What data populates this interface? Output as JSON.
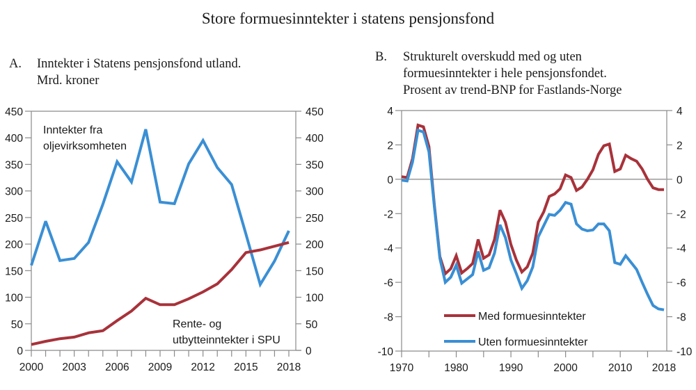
{
  "title": "Store formuesinntekter i statens pensjonsfond",
  "panels": {
    "a": {
      "letter": "A.",
      "title_lines": [
        "Inntekter i Statens pensjonsfond utland.",
        "Mrd. kroner"
      ]
    },
    "b": {
      "letter": "B.",
      "title_lines": [
        "Strukturelt overskudd med og uten",
        "formuesinntekter i hele pensjonsfondet.",
        "Prosent av trend-BNP for Fastlands-Norge"
      ]
    }
  },
  "colors": {
    "red": "#a8323a",
    "blue": "#3a8fd4",
    "axis": "#8a8a8a",
    "zero_line": "#b0b0b0"
  },
  "chart_data": [
    {
      "type": "line",
      "title": "A. Inntekter i Statens pensjonsfond utland. Mrd. kroner",
      "xlabel": "",
      "ylabel": "Mrd. kroner",
      "x": [
        2000,
        2001,
        2002,
        2003,
        2004,
        2005,
        2006,
        2007,
        2008,
        2009,
        2010,
        2011,
        2012,
        2013,
        2014,
        2015,
        2016,
        2017,
        2018
      ],
      "x_ticks": [
        2000,
        2003,
        2006,
        2009,
        2012,
        2015,
        2018
      ],
      "ylim": [
        0,
        450
      ],
      "y_ticks": [
        0,
        50,
        100,
        150,
        200,
        250,
        300,
        350,
        400,
        450
      ],
      "grid": false,
      "series": [
        {
          "name": "Inntekter fra oljevirksomheten",
          "color": "#3a8fd4",
          "values": [
            160,
            243,
            169,
            173,
            203,
            275,
            355,
            317,
            416,
            279,
            276,
            351,
            395,
            344,
            312,
            219,
            124,
            168,
            225
          ]
        },
        {
          "name": "Rente- og utbytteinntekter i SPU",
          "color": "#a8323a",
          "values": [
            11,
            17,
            22,
            25,
            33,
            37,
            56,
            74,
            98,
            86,
            86,
            97,
            110,
            125,
            152,
            184,
            189,
            196,
            203
          ]
        }
      ],
      "annotations": [
        {
          "lines": [
            "Inntekter fra",
            "oljevirksomheten"
          ]
        },
        {
          "lines": [
            "Rente- og",
            "utbytteinntekter i SPU"
          ]
        }
      ]
    },
    {
      "type": "line",
      "title": "B. Strukturelt overskudd med og uten formuesinntekter i hele pensjonsfondet. Prosent av trend-BNP for Fastlands-Norge",
      "xlabel": "",
      "ylabel": "Prosent av trend-BNP",
      "x": [
        1970,
        1971,
        1972,
        1973,
        1974,
        1975,
        1976,
        1977,
        1978,
        1979,
        1980,
        1981,
        1982,
        1983,
        1984,
        1985,
        1986,
        1987,
        1988,
        1989,
        1990,
        1991,
        1992,
        1993,
        1994,
        1995,
        1996,
        1997,
        1998,
        1999,
        2000,
        2001,
        2002,
        2003,
        2004,
        2005,
        2006,
        2007,
        2008,
        2009,
        2010,
        2011,
        2012,
        2013,
        2014,
        2015,
        2016,
        2017,
        2018
      ],
      "x_ticks": [
        1970,
        1980,
        1990,
        2000,
        2010,
        2018
      ],
      "x_minor_step": 5,
      "ylim": [
        -10,
        4
      ],
      "y_ticks": [
        -10,
        -8,
        -6,
        -4,
        -2,
        0,
        2,
        4
      ],
      "grid": false,
      "zero_line": true,
      "legend": {
        "position": "lower-center",
        "entries": [
          "Med formuesinntekter",
          "Uten formuesinntekter"
        ]
      },
      "series": [
        {
          "name": "Med formuesinntekter",
          "color": "#a8323a",
          "values": [
            0.15,
            0.1,
            1.2,
            3.15,
            3.05,
            1.9,
            -1.5,
            -4.5,
            -5.5,
            -5.2,
            -4.45,
            -5.45,
            -5.2,
            -4.9,
            -3.5,
            -4.6,
            -4.4,
            -3.5,
            -1.8,
            -2.5,
            -3.8,
            -4.7,
            -5.4,
            -5.1,
            -4.3,
            -2.5,
            -1.9,
            -1.0,
            -0.85,
            -0.55,
            0.25,
            0.1,
            -0.65,
            -0.45,
            0.0,
            0.55,
            1.45,
            1.95,
            2.05,
            0.45,
            0.6,
            1.4,
            1.2,
            1.05,
            0.6,
            0.0,
            -0.5,
            -0.6,
            -0.6
          ]
        },
        {
          "name": "Uten formuesinntekter",
          "color": "#3a8fd4",
          "values": [
            -0.05,
            -0.1,
            1.0,
            2.85,
            2.75,
            1.6,
            -1.6,
            -4.6,
            -6.0,
            -5.7,
            -5.0,
            -6.05,
            -5.8,
            -5.55,
            -4.2,
            -5.3,
            -5.15,
            -4.3,
            -2.65,
            -3.4,
            -4.7,
            -5.5,
            -6.35,
            -5.9,
            -5.1,
            -3.35,
            -2.7,
            -2.05,
            -2.1,
            -1.8,
            -1.35,
            -1.45,
            -2.6,
            -2.9,
            -3.0,
            -2.95,
            -2.6,
            -2.6,
            -3.0,
            -4.85,
            -4.95,
            -4.45,
            -4.85,
            -5.25,
            -6.0,
            -6.7,
            -7.35,
            -7.55,
            -7.6
          ]
        }
      ]
    }
  ]
}
